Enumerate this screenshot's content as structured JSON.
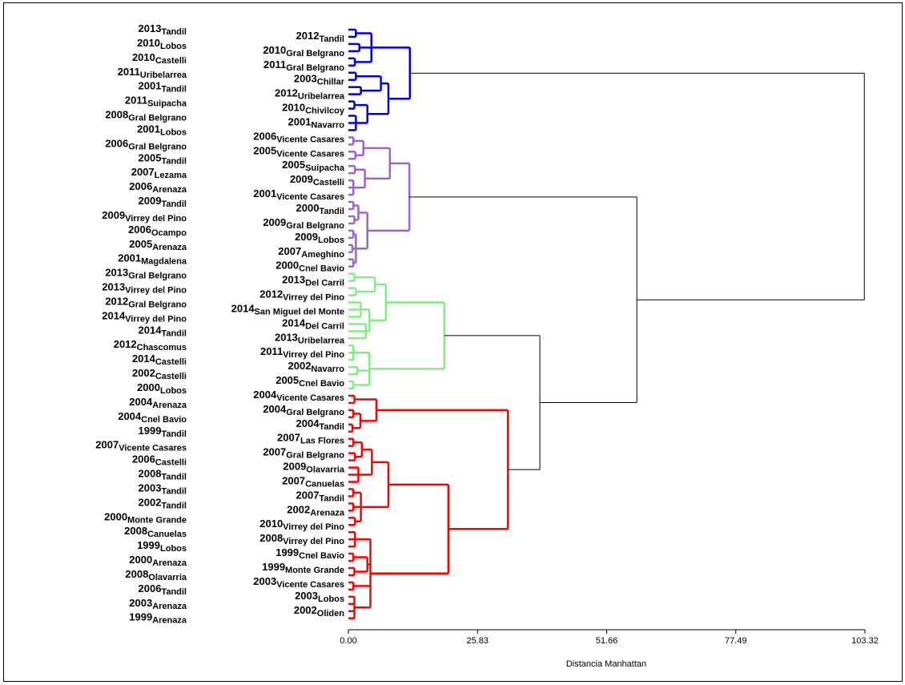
{
  "chart_data": {
    "type": "dendrogram",
    "xlabel": "Distancia Manhattan",
    "xlim": [
      0,
      103.32
    ],
    "xticks": [
      {
        "value": 0,
        "label": "0.00"
      },
      {
        "value": 25.83,
        "label": "25.83"
      },
      {
        "value": 51.66,
        "label": "51.66"
      },
      {
        "value": 77.49,
        "label": "77.49"
      },
      {
        "value": 103.32,
        "label": "103.32"
      }
    ],
    "leaves": [
      {
        "year": "2013",
        "name": "Tandil"
      },
      {
        "year": "2012",
        "name": "Tandil"
      },
      {
        "year": "2010",
        "name": "Lobos"
      },
      {
        "year": "2010",
        "name": "Gral Belgrano"
      },
      {
        "year": "2010",
        "name": "Castelli"
      },
      {
        "year": "2011",
        "name": "Gral Belgrano"
      },
      {
        "year": "2011",
        "name": "Uribelarrea"
      },
      {
        "year": "2003",
        "name": "Chillar"
      },
      {
        "year": "2001",
        "name": "Tandil"
      },
      {
        "year": "2012",
        "name": "Uribelarrea"
      },
      {
        "year": "2011",
        "name": "Suipacha"
      },
      {
        "year": "2010",
        "name": "Chivilcoy"
      },
      {
        "year": "2008",
        "name": "Gral Belgrano"
      },
      {
        "year": "2001",
        "name": "Navarro"
      },
      {
        "year": "2001",
        "name": "Lobos"
      },
      {
        "year": "2006",
        "name": "Vicente Casares"
      },
      {
        "year": "2006",
        "name": "Gral Belgrano"
      },
      {
        "year": "2005",
        "name": "Vicente Casares"
      },
      {
        "year": "2005",
        "name": "Tandil"
      },
      {
        "year": "2005",
        "name": "Suipacha"
      },
      {
        "year": "2007",
        "name": "Lezama"
      },
      {
        "year": "2009",
        "name": "Castelli"
      },
      {
        "year": "2006",
        "name": "Arenaza"
      },
      {
        "year": "2001",
        "name": "Vicente Casares"
      },
      {
        "year": "2009",
        "name": "Tandil"
      },
      {
        "year": "2000",
        "name": "Tandil"
      },
      {
        "year": "2009",
        "name": "Virrey del Pino"
      },
      {
        "year": "2009",
        "name": "Gral Belgrano"
      },
      {
        "year": "2006",
        "name": "Ocampo"
      },
      {
        "year": "2009",
        "name": "Lobos"
      },
      {
        "year": "2005",
        "name": "Arenaza"
      },
      {
        "year": "2007",
        "name": "Ameghino"
      },
      {
        "year": "2001",
        "name": "Magdalena"
      },
      {
        "year": "2000",
        "name": "Cnel Bavio"
      },
      {
        "year": "2013",
        "name": "Gral Belgrano"
      },
      {
        "year": "2013",
        "name": "Del Carril"
      },
      {
        "year": "2013",
        "name": "Virrey del Pino"
      },
      {
        "year": "2012",
        "name": "Virrey del Pino"
      },
      {
        "year": "2012",
        "name": "Gral Belgrano"
      },
      {
        "year": "2014",
        "name": "San Miguel del Monte"
      },
      {
        "year": "2014",
        "name": "Virrey del Pino"
      },
      {
        "year": "2014",
        "name": "Del Carril"
      },
      {
        "year": "2014",
        "name": "Tandil"
      },
      {
        "year": "2013",
        "name": "Uribelarrea"
      },
      {
        "year": "2012",
        "name": "Chascomus"
      },
      {
        "year": "2011",
        "name": "Virrey del Pino"
      },
      {
        "year": "2014",
        "name": "Castelli"
      },
      {
        "year": "2002",
        "name": "Navarro"
      },
      {
        "year": "2002",
        "name": "Castelli"
      },
      {
        "year": "2005",
        "name": "Cnel Bavio"
      },
      {
        "year": "2000",
        "name": "Lobos"
      },
      {
        "year": "2004",
        "name": "Vicente Casares"
      },
      {
        "year": "2004",
        "name": "Arenaza"
      },
      {
        "year": "2004",
        "name": "Gral Belgrano"
      },
      {
        "year": "2004",
        "name": "Cnel Bavio"
      },
      {
        "year": "2004",
        "name": "Tandil"
      },
      {
        "year": "1999",
        "name": "Tandil"
      },
      {
        "year": "2007",
        "name": "Las Flores"
      },
      {
        "year": "2007",
        "name": "Vicente Casares"
      },
      {
        "year": "2007",
        "name": "Gral Belgrano"
      },
      {
        "year": "2006",
        "name": "Castelli"
      },
      {
        "year": "2009",
        "name": "Olavarria"
      },
      {
        "year": "2008",
        "name": "Tandil"
      },
      {
        "year": "2007",
        "name": "Canuelas"
      },
      {
        "year": "2003",
        "name": "Tandil"
      },
      {
        "year": "2007",
        "name": "Tandil"
      },
      {
        "year": "2002",
        "name": "Tandil"
      },
      {
        "year": "2002",
        "name": "Arenaza"
      },
      {
        "year": "2000",
        "name": "Monte Grande"
      },
      {
        "year": "2010",
        "name": "Virrey del Pino"
      },
      {
        "year": "2008",
        "name": "Canuelas"
      },
      {
        "year": "2008",
        "name": "Virrey del Pino"
      },
      {
        "year": "1999",
        "name": "Lobos"
      },
      {
        "year": "1999",
        "name": "Cnel Bavio"
      },
      {
        "year": "2000",
        "name": "Arenaza"
      },
      {
        "year": "1999",
        "name": "Monte Grande"
      },
      {
        "year": "2008",
        "name": "Olavarria"
      },
      {
        "year": "2003",
        "name": "Vicente Casares"
      },
      {
        "year": "2006",
        "name": "Tandil"
      },
      {
        "year": "2003",
        "name": "Lobos"
      },
      {
        "year": "2003",
        "name": "Arenaza"
      },
      {
        "year": "2002",
        "name": "Oliden"
      },
      {
        "year": "1999",
        "name": "Arenaza"
      }
    ],
    "tree": {
      "height": 103.2,
      "color": "#000000",
      "children": [
        {
          "height": 12.3,
          "color": "#0000dd",
          "children": [
            {
              "height": 4.6,
              "children": [
                {
                  "height": 1.5,
                  "children": [
                    0,
                    1
                  ]
                },
                {
                  "height": 2.2,
                  "children": [
                    2,
                    3
                  ]
                },
                {
                  "height": 1.3,
                  "children": [
                    4,
                    5
                  ]
                }
              ]
            },
            {
              "height": 8.0,
              "children": [
                {
                  "height": 6.5,
                  "children": [
                    {
                      "height": 1.5,
                      "children": [
                        6,
                        7
                      ]
                    },
                    {
                      "height": 2.5,
                      "children": [
                        8,
                        9
                      ]
                    }
                  ]
                },
                {
                  "height": 3.8,
                  "children": [
                    {
                      "height": 1.2,
                      "children": [
                        10,
                        11
                      ]
                    },
                    {
                      "height": 1.5,
                      "children": [
                        12,
                        13,
                        14
                      ]
                    }
                  ]
                }
              ]
            }
          ]
        },
        {
          "height": 57.7,
          "children": [
            {
              "height": 12.2,
              "color": "#9966cc",
              "children": [
                {
                  "height": 8.3,
                  "children": [
                    {
                      "height": 3.0,
                      "children": [
                        {
                          "height": 1.0,
                          "children": [
                            15,
                            16
                          ]
                        },
                        {
                          "height": 1.4,
                          "children": [
                            17,
                            18
                          ]
                        }
                      ]
                    },
                    {
                      "height": 3.3,
                      "children": [
                        {
                          "height": 1.3,
                          "children": [
                            19,
                            20
                          ]
                        },
                        {
                          "height": 1.0,
                          "children": [
                            21,
                            22,
                            23
                          ]
                        }
                      ]
                    }
                  ]
                },
                {
                  "height": 3.8,
                  "children": [
                    {
                      "height": 2.0,
                      "children": [
                        {
                          "height": 1.0,
                          "children": [
                            24,
                            25
                          ]
                        },
                        {
                          "height": 1.2,
                          "children": [
                            26,
                            27
                          ]
                        }
                      ]
                    },
                    {
                      "height": 1.5,
                      "children": [
                        {
                          "height": 1.0,
                          "children": [
                            28,
                            29
                          ]
                        },
                        {
                          "height": 0.8,
                          "children": [
                            30,
                            31
                          ]
                        },
                        {
                          "height": 1.0,
                          "children": [
                            32,
                            33
                          ]
                        }
                      ]
                    }
                  ]
                }
              ]
            },
            {
              "height": 38.3,
              "children": [
                {
                  "height": 19.2,
                  "color": "#80ee80",
                  "children": [
                    {
                      "height": 7.5,
                      "children": [
                        {
                          "height": 5.3,
                          "children": [
                            {
                              "height": 1.2,
                              "children": [
                                34,
                                35
                              ]
                            },
                            {
                              "height": 1.5,
                              "children": [
                                36,
                                37
                              ]
                            }
                          ]
                        },
                        {
                          "height": 4.2,
                          "children": [
                            {
                              "height": 2.5,
                              "children": [
                                38,
                                39,
                                40
                              ]
                            },
                            {
                              "height": 3.5,
                              "children": [
                                41,
                                42,
                                43
                              ]
                            }
                          ]
                        }
                      ]
                    },
                    {
                      "height": 4.2,
                      "children": [
                        {
                          "height": 1.0,
                          "children": [
                            44,
                            45,
                            46
                          ]
                        },
                        {
                          "height": 1.8,
                          "children": [
                            47,
                            48
                          ]
                        },
                        {
                          "height": 1.0,
                          "children": [
                            49,
                            50
                          ]
                        }
                      ]
                    }
                  ]
                },
                {
                  "height": 31.9,
                  "color": "#ff0000",
                  "children": [
                    {
                      "height": 5.6,
                      "children": [
                        {
                          "height": 1.2,
                          "children": [
                            51,
                            52
                          ]
                        },
                        {
                          "height": 2.4,
                          "children": [
                            {
                              "height": 1.0,
                              "children": [
                                53,
                                54
                              ]
                            },
                            {
                              "height": 0.8,
                              "children": [
                                55,
                                56
                              ]
                            }
                          ]
                        }
                      ]
                    },
                    {
                      "height": 20.0,
                      "children": [
                        {
                          "height": 8.0,
                          "children": [
                            {
                              "height": 4.7,
                              "children": [
                                {
                                  "height": 2.7,
                                  "children": [
                                    {
                                      "height": 1.0,
                                      "children": [
                                        57,
                                        58
                                      ]
                                    },
                                    {
                                      "height": 1.3,
                                      "children": [
                                        59,
                                        60
                                      ]
                                    }
                                  ]
                                },
                                {
                                  "height": 2.0,
                                  "children": [
                                    61,
                                    62,
                                    63
                                  ]
                                }
                              ]
                            },
                            {
                              "height": 2.5,
                              "children": [
                                {
                                  "height": 1.0,
                                  "children": [
                                    64,
                                    65
                                  ]
                                },
                                {
                                  "height": 1.0,
                                  "children": [
                                    66,
                                    67
                                  ]
                                },
                                {
                                  "height": 1.3,
                                  "children": [
                                    68,
                                    69
                                  ]
                                }
                              ]
                            }
                          ]
                        },
                        {
                          "height": 4.4,
                          "children": [
                            {
                              "height": 1.3,
                              "children": [
                                70,
                                71,
                                72
                              ]
                            },
                            {
                              "height": 3.8,
                              "children": [
                                {
                                  "height": 1.0,
                                  "children": [
                                    73,
                                    74
                                  ]
                                },
                                {
                                  "height": 1.2,
                                  "children": [
                                    75,
                                    76
                                  ]
                                }
                              ]
                            },
                            {
                              "height": 1.0,
                              "children": [
                                77,
                                78
                              ]
                            },
                            {
                              "height": 1.2,
                              "children": [
                                79,
                                80,
                                81,
                                82
                              ]
                            }
                          ]
                        }
                      ]
                    }
                  ]
                }
              ]
            }
          ]
        }
      ]
    }
  }
}
